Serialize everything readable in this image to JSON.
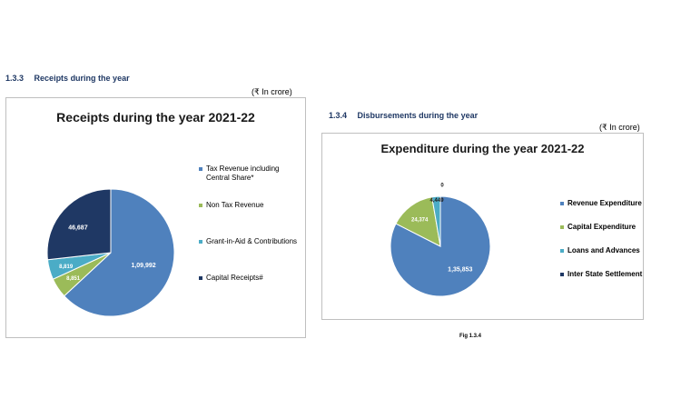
{
  "left_section": {
    "number": "1.3.3",
    "title": "Receipts during the year",
    "unit": "(₹ In crore)"
  },
  "right_section": {
    "number": "1.3.4",
    "title": "Disbursements during the year",
    "unit": "(₹ In crore)",
    "figure_caption": "Fig 1.3.4"
  },
  "chart_data": [
    {
      "type": "pie",
      "title": "Receipts during the year 2021-22",
      "categories": [
        "Tax Revenue including Central Share*",
        "Non Tax Revenue",
        "Grant-in-Aid & Contributions",
        "Capital Receipts#"
      ],
      "values": [
        109992,
        8851,
        8819,
        46687
      ],
      "data_labels": [
        "1,09,992",
        "8,851",
        "8,819",
        "46,687"
      ],
      "colors": [
        "#4f81bd",
        "#9bbb59",
        "#4bacc6",
        "#1f3864"
      ],
      "legend_position": "right"
    },
    {
      "type": "pie",
      "title": "Expenditure during the year 2021-22",
      "categories": [
        "Revenue Expenditure",
        "Capital Expenditure",
        "Loans and Advances",
        "Inter State Settlement"
      ],
      "values": [
        135853,
        24374,
        4449,
        0
      ],
      "data_labels": [
        "1,35,853",
        "24,374",
        "4,449",
        "0"
      ],
      "colors": [
        "#4f81bd",
        "#9bbb59",
        "#4bacc6",
        "#1f3864"
      ],
      "legend_position": "right"
    }
  ]
}
